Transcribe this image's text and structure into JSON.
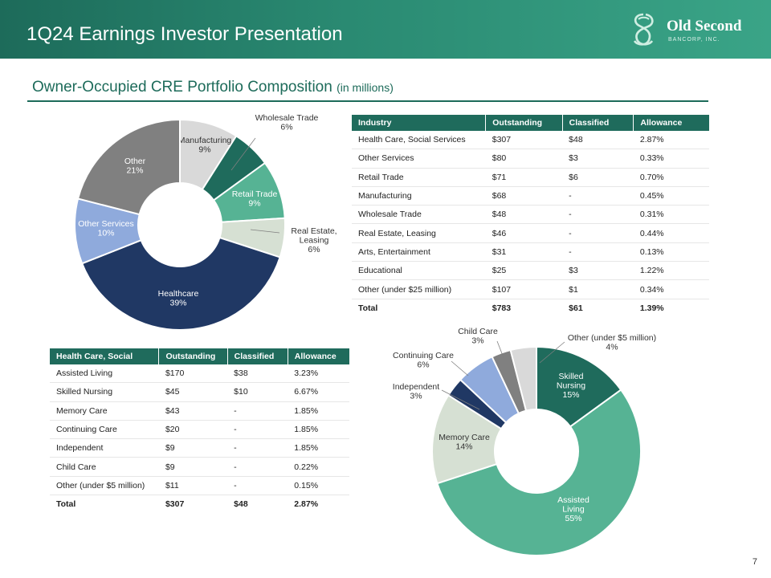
{
  "header": {
    "title": "1Q24 Earnings Investor Presentation",
    "logo_name": "Old Second",
    "logo_sub": "BANCORP, INC."
  },
  "section": {
    "title": "Owner-Occupied  CRE Portfolio Composition",
    "unit": "(in millions)"
  },
  "industry_table": {
    "columns": [
      "Industry",
      "Outstanding",
      "Classified",
      "Allowance"
    ],
    "rows": [
      [
        "Health Care, Social Services",
        "$307",
        "$48",
        "2.87%"
      ],
      [
        "Other Services",
        "$80",
        "$3",
        "0.33%"
      ],
      [
        "Retail Trade",
        "$71",
        "$6",
        "0.70%"
      ],
      [
        "Manufacturing",
        "$68",
        "-",
        "0.45%"
      ],
      [
        "Wholesale Trade",
        "$48",
        "-",
        "0.31%"
      ],
      [
        "Real Estate, Leasing",
        "$46",
        "-",
        "0.44%"
      ],
      [
        "Arts, Entertainment",
        "$31",
        "-",
        "0.13%"
      ],
      [
        "Educational",
        "$25",
        "$3",
        "1.22%"
      ],
      [
        "Other (under $25 million)",
        "$107",
        "$1",
        "0.34%"
      ]
    ],
    "total": [
      "Total",
      "$783",
      "$61",
      "1.39%"
    ]
  },
  "healthcare_table": {
    "columns": [
      "Health Care, Social",
      "Outstanding",
      "Classified",
      "Allowance"
    ],
    "rows": [
      [
        "Assisted Living",
        "$170",
        "$38",
        "3.23%"
      ],
      [
        "Skilled Nursing",
        "$45",
        "$10",
        "6.67%"
      ],
      [
        "Memory Care",
        "$43",
        "-",
        "1.85%"
      ],
      [
        "Continuing Care",
        "$20",
        "-",
        "1.85%"
      ],
      [
        "Independent",
        "$9",
        "-",
        "1.85%"
      ],
      [
        "Child Care",
        "$9",
        "-",
        "0.22%"
      ],
      [
        "Other (under $5 million)",
        "$11",
        "-",
        "0.15%"
      ]
    ],
    "total": [
      "Total",
      "$307",
      "$48",
      "2.87%"
    ]
  },
  "page_number": "7",
  "chart_data": [
    {
      "type": "pie",
      "variant": "donut",
      "title": "Owner-Occupied CRE Portfolio Composition",
      "slices": [
        {
          "name": "Manufacturing",
          "value": 9,
          "label": "9%",
          "color": "#d9d9d9"
        },
        {
          "name": "Wholesale Trade",
          "value": 6,
          "label": "6%",
          "color": "#1f6b5c"
        },
        {
          "name": "Retail Trade",
          "value": 9,
          "label": "9%",
          "color": "#56b394"
        },
        {
          "name": "Real Estate, Leasing",
          "value": 6,
          "label": "6%",
          "color": "#d6e0d3"
        },
        {
          "name": "Healthcare",
          "value": 39,
          "label": "39%",
          "color": "#203864"
        },
        {
          "name": "Other Services",
          "value": 10,
          "label": "10%",
          "color": "#8faadc"
        },
        {
          "name": "Other",
          "value": 21,
          "label": "21%",
          "color": "#808080"
        }
      ]
    },
    {
      "type": "pie",
      "variant": "donut",
      "title": "Health Care, Social",
      "slices": [
        {
          "name": "Skilled Nursing",
          "value": 15,
          "label": "15%",
          "color": "#1f6b5c"
        },
        {
          "name": "Assisted Living",
          "value": 55,
          "label": "55%",
          "color": "#56b394"
        },
        {
          "name": "Memory Care",
          "value": 14,
          "label": "14%",
          "color": "#d6e0d3"
        },
        {
          "name": "Independent",
          "value": 3,
          "label": "3%",
          "color": "#203864"
        },
        {
          "name": "Continuing Care",
          "value": 6,
          "label": "6%",
          "color": "#8faadc"
        },
        {
          "name": "Child Care",
          "value": 3,
          "label": "3%",
          "color": "#808080"
        },
        {
          "name": "Other (under $5 million)",
          "value": 4,
          "label": "4%",
          "color": "#d9d9d9"
        }
      ]
    }
  ]
}
